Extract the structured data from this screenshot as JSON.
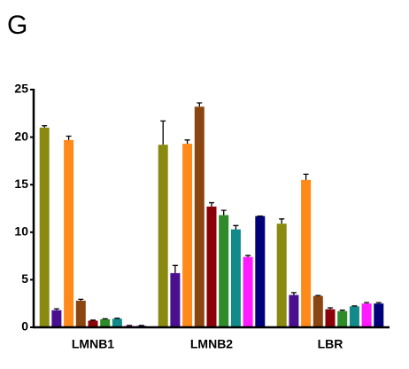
{
  "chart_data": {
    "type": "bar",
    "panel_label": "G",
    "categories": [
      "LMNB1",
      "LMNB2",
      "LBR"
    ],
    "series": [
      {
        "color": "#8a8a10",
        "values": [
          21.0,
          19.2,
          10.9
        ],
        "errors": [
          0.2,
          2.5,
          0.5
        ]
      },
      {
        "color": "#4b1090",
        "values": [
          1.8,
          5.7,
          3.4
        ],
        "errors": [
          0.15,
          0.8,
          0.25
        ]
      },
      {
        "color": "#ff8a1a",
        "values": [
          19.7,
          19.3,
          15.5
        ],
        "errors": [
          0.4,
          0.4,
          0.6
        ]
      },
      {
        "color": "#8b4510",
        "values": [
          2.8,
          23.2,
          3.3
        ],
        "errors": [
          0.15,
          0.4,
          0.05
        ]
      },
      {
        "color": "#8b0008",
        "values": [
          0.7,
          12.7,
          1.9
        ],
        "errors": [
          0.05,
          0.4,
          0.15
        ]
      },
      {
        "color": "#2e8b2a",
        "values": [
          0.85,
          11.8,
          1.7
        ],
        "errors": [
          0.05,
          0.5,
          0.1
        ]
      },
      {
        "color": "#128a8a",
        "values": [
          0.9,
          10.3,
          2.2
        ],
        "errors": [
          0.05,
          0.4,
          0.05
        ]
      },
      {
        "color": "#ff1aff",
        "values": [
          0.15,
          7.4,
          2.5
        ],
        "errors": [
          0.05,
          0.15,
          0.1
        ]
      },
      {
        "color": "#00007a",
        "values": [
          0.15,
          11.7,
          2.5
        ],
        "errors": [
          0.05,
          0,
          0.1
        ]
      }
    ],
    "ylim": [
      0,
      25
    ],
    "yticks": [
      0,
      5,
      10,
      15,
      20,
      25
    ]
  }
}
